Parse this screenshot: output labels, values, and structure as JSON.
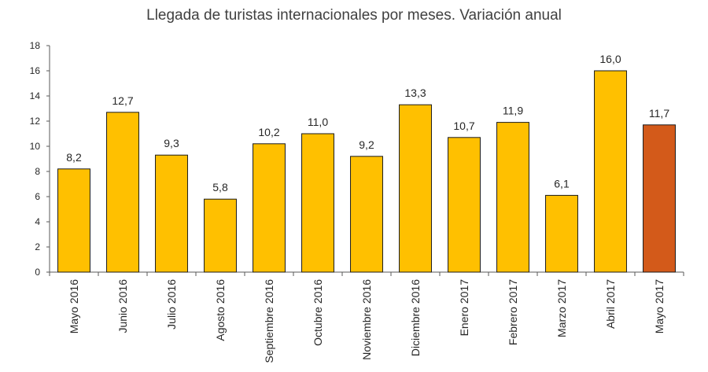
{
  "chart_data": {
    "type": "bar",
    "title": "Llegada de turistas internacionales por meses. Variación anual",
    "categories": [
      "Mayo 2016",
      "Junio 2016",
      "Julio 2016",
      "Agosto 2016",
      "Septiembre 2016",
      "Octubre 2016",
      "Noviembre 2016",
      "Diciembre 2016",
      "Enero 2017",
      "Febrero 2017",
      "Marzo 2017",
      "Abril 2017",
      "Mayo 2017"
    ],
    "values": [
      8.2,
      12.7,
      9.3,
      5.8,
      10.2,
      11.0,
      9.2,
      13.3,
      10.7,
      11.9,
      6.1,
      16.0,
      11.7
    ],
    "value_labels": [
      "8,2",
      "12,7",
      "9,3",
      "5,8",
      "10,2",
      "11,0",
      "9,2",
      "13,3",
      "10,7",
      "11,9",
      "6,1",
      "16,0",
      "11,7"
    ],
    "y_ticks": [
      0,
      2,
      4,
      6,
      8,
      10,
      12,
      14,
      16,
      18
    ],
    "ylim": [
      0,
      18
    ],
    "xlabel": "",
    "ylabel": "",
    "grid": false,
    "bar_color": "#FFC000",
    "highlight_color": "#D35A1A",
    "highlight_index": 12,
    "bar_stroke": "#1a1a1a"
  }
}
